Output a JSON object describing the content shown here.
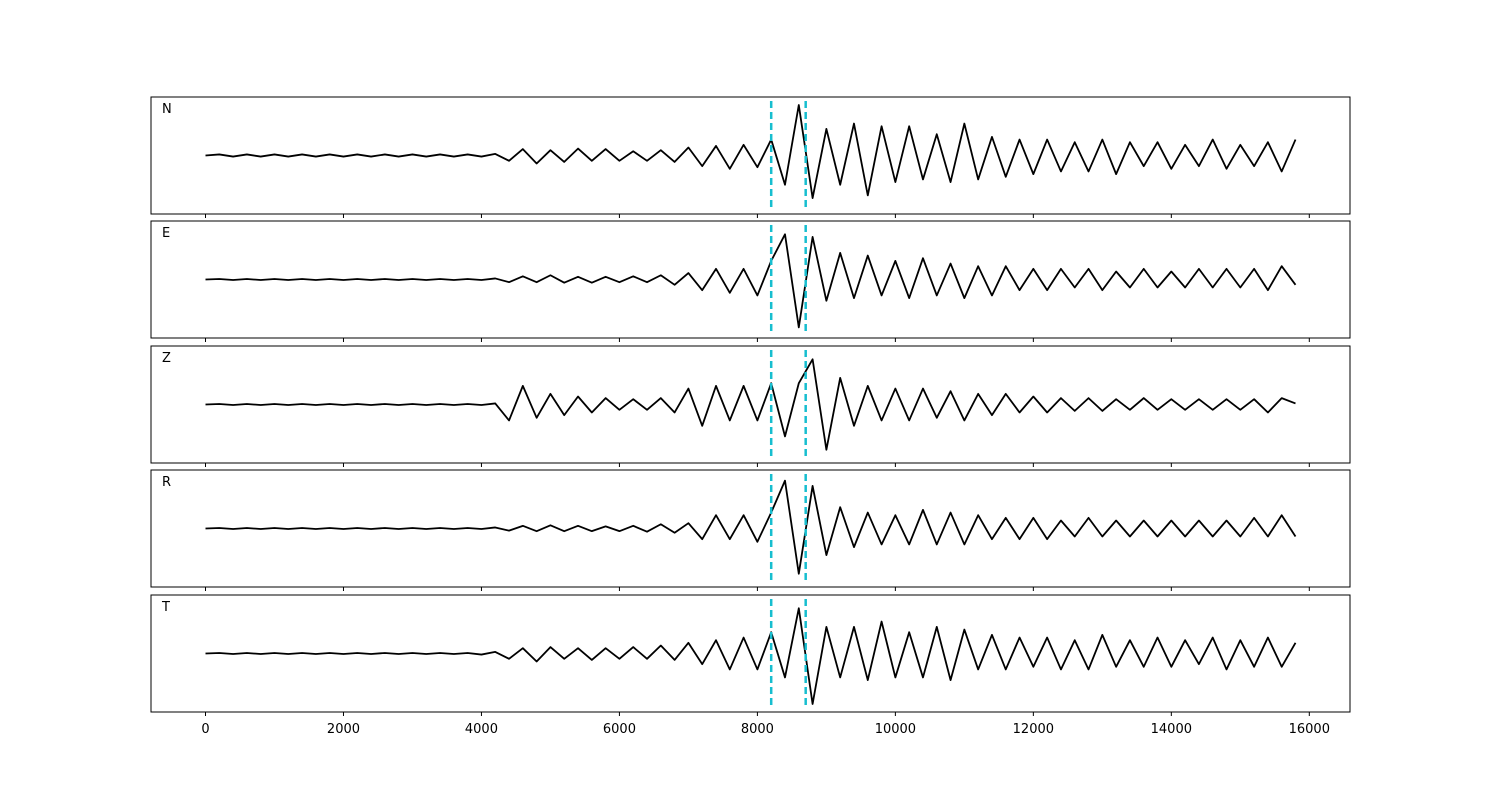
{
  "chart_data": {
    "type": "line",
    "x": [
      0,
      200,
      400,
      600,
      800,
      1000,
      1200,
      1400,
      1600,
      1800,
      2000,
      2200,
      2400,
      2600,
      2800,
      3000,
      3200,
      3400,
      3600,
      3800,
      4000,
      4200,
      4400,
      4600,
      4800,
      5000,
      5200,
      5400,
      5600,
      5800,
      6000,
      6200,
      6400,
      6600,
      6800,
      7000,
      7200,
      7400,
      7600,
      7800,
      8000,
      8200,
      8400,
      8600,
      8800,
      9000,
      9200,
      9400,
      9600,
      9800,
      10000,
      10200,
      10400,
      10600,
      10800,
      11000,
      11200,
      11400,
      11600,
      11800,
      12000,
      12200,
      12400,
      12600,
      12800,
      13000,
      13200,
      13400,
      13600,
      13800,
      14000,
      14200,
      14400,
      14600,
      14800,
      15000,
      15200,
      15400,
      15600,
      15800
    ],
    "xlim": [
      -790,
      16590
    ],
    "xticks": [
      0,
      2000,
      4000,
      6000,
      8000,
      10000,
      12000,
      14000,
      16000
    ],
    "ylim": [
      -1.1,
      1.1
    ],
    "markers": {
      "values": [
        8200,
        8700
      ],
      "color": "#17becf"
    },
    "series": [
      {
        "name": "N",
        "color": "#000000",
        "values": [
          0,
          0.02,
          -0.02,
          0.02,
          -0.02,
          0.02,
          -0.02,
          0.02,
          -0.02,
          0.02,
          -0.02,
          0.02,
          -0.02,
          0.02,
          -0.02,
          0.02,
          -0.02,
          0.02,
          -0.02,
          0.02,
          -0.02,
          0.03,
          -0.1,
          0.12,
          -0.15,
          0.1,
          -0.12,
          0.13,
          -0.1,
          0.12,
          -0.1,
          0.08,
          -0.1,
          0.1,
          -0.12,
          0.15,
          -0.2,
          0.18,
          -0.25,
          0.2,
          -0.22,
          0.3,
          -0.55,
          0.95,
          -0.8,
          0.5,
          -0.55,
          0.6,
          -0.75,
          0.55,
          -0.5,
          0.55,
          -0.45,
          0.4,
          -0.5,
          0.6,
          -0.45,
          0.35,
          -0.4,
          0.3,
          -0.35,
          0.3,
          -0.3,
          0.25,
          -0.3,
          0.3,
          -0.35,
          0.25,
          -0.2,
          0.25,
          -0.25,
          0.2,
          -0.2,
          0.3,
          -0.25,
          0.2,
          -0.2,
          0.25,
          -0.3,
          0.3
        ]
      },
      {
        "name": "E",
        "color": "#000000",
        "values": [
          0,
          0.01,
          -0.01,
          0.01,
          -0.01,
          0.01,
          -0.01,
          0.01,
          -0.01,
          0.01,
          -0.01,
          0.01,
          -0.01,
          0.01,
          -0.01,
          0.01,
          -0.01,
          0.01,
          -0.01,
          0.01,
          -0.01,
          0.02,
          -0.05,
          0.06,
          -0.05,
          0.08,
          -0.06,
          0.05,
          -0.06,
          0.05,
          -0.05,
          0.06,
          -0.05,
          0.08,
          -0.1,
          0.12,
          -0.2,
          0.2,
          -0.25,
          0.2,
          -0.3,
          0.35,
          0.85,
          -0.9,
          0.8,
          -0.4,
          0.5,
          -0.35,
          0.45,
          -0.3,
          0.35,
          -0.35,
          0.4,
          -0.3,
          0.3,
          -0.35,
          0.25,
          -0.3,
          0.25,
          -0.2,
          0.2,
          -0.2,
          0.2,
          -0.15,
          0.2,
          -0.2,
          0.15,
          -0.15,
          0.2,
          -0.15,
          0.15,
          -0.15,
          0.2,
          -0.15,
          0.2,
          -0.15,
          0.2,
          -0.2,
          0.25,
          -0.1
        ]
      },
      {
        "name": "Z",
        "color": "#000000",
        "values": [
          0,
          0.01,
          -0.01,
          0.01,
          -0.01,
          0.01,
          -0.01,
          0.01,
          -0.01,
          0.01,
          -0.01,
          0.01,
          -0.01,
          0.01,
          -0.01,
          0.01,
          -0.01,
          0.01,
          -0.01,
          0.01,
          -0.01,
          0.02,
          -0.3,
          0.35,
          -0.25,
          0.2,
          -0.2,
          0.15,
          -0.15,
          0.12,
          -0.1,
          0.1,
          -0.1,
          0.12,
          -0.15,
          0.3,
          -0.4,
          0.35,
          -0.3,
          0.35,
          -0.3,
          0.4,
          -0.6,
          0.4,
          0.85,
          -0.85,
          0.5,
          -0.4,
          0.35,
          -0.3,
          0.3,
          -0.3,
          0.3,
          -0.25,
          0.25,
          -0.3,
          0.2,
          -0.2,
          0.2,
          -0.15,
          0.15,
          -0.15,
          0.12,
          -0.12,
          0.12,
          -0.12,
          0.1,
          -0.1,
          0.12,
          -0.1,
          0.1,
          -0.1,
          0.1,
          -0.1,
          0.1,
          -0.1,
          0.1,
          -0.15,
          0.12,
          0.02
        ]
      },
      {
        "name": "R",
        "color": "#000000",
        "values": [
          0,
          0.01,
          -0.01,
          0.01,
          -0.01,
          0.01,
          -0.01,
          0.01,
          -0.01,
          0.01,
          -0.01,
          0.01,
          -0.01,
          0.01,
          -0.01,
          0.01,
          -0.01,
          0.01,
          -0.01,
          0.01,
          -0.01,
          0.02,
          -0.04,
          0.05,
          -0.05,
          0.06,
          -0.05,
          0.05,
          -0.05,
          0.04,
          -0.05,
          0.05,
          -0.06,
          0.08,
          -0.08,
          0.1,
          -0.2,
          0.25,
          -0.2,
          0.25,
          -0.25,
          0.3,
          0.9,
          -0.85,
          0.8,
          -0.5,
          0.4,
          -0.35,
          0.3,
          -0.3,
          0.25,
          -0.3,
          0.35,
          -0.3,
          0.3,
          -0.3,
          0.25,
          -0.2,
          0.2,
          -0.2,
          0.2,
          -0.2,
          0.15,
          -0.15,
          0.2,
          -0.15,
          0.15,
          -0.15,
          0.15,
          -0.15,
          0.15,
          -0.15,
          0.15,
          -0.15,
          0.15,
          -0.15,
          0.2,
          -0.15,
          0.25,
          -0.15
        ]
      },
      {
        "name": "T",
        "color": "#000000",
        "values": [
          0,
          0.01,
          -0.01,
          0.01,
          -0.01,
          0.01,
          -0.01,
          0.01,
          -0.01,
          0.01,
          -0.01,
          0.01,
          -0.01,
          0.01,
          -0.01,
          0.01,
          -0.01,
          0.01,
          -0.01,
          0.01,
          -0.02,
          0.03,
          -0.1,
          0.1,
          -0.15,
          0.12,
          -0.1,
          0.1,
          -0.12,
          0.1,
          -0.1,
          0.12,
          -0.1,
          0.15,
          -0.12,
          0.2,
          -0.2,
          0.25,
          -0.3,
          0.3,
          -0.3,
          0.4,
          -0.45,
          0.85,
          -0.95,
          0.5,
          -0.45,
          0.5,
          -0.5,
          0.6,
          -0.45,
          0.4,
          -0.45,
          0.5,
          -0.5,
          0.45,
          -0.3,
          0.35,
          -0.3,
          0.3,
          -0.25,
          0.3,
          -0.3,
          0.25,
          -0.3,
          0.35,
          -0.25,
          0.25,
          -0.25,
          0.3,
          -0.25,
          0.25,
          -0.2,
          0.3,
          -0.3,
          0.25,
          -0.25,
          0.3,
          -0.25,
          0.2
        ]
      }
    ]
  }
}
